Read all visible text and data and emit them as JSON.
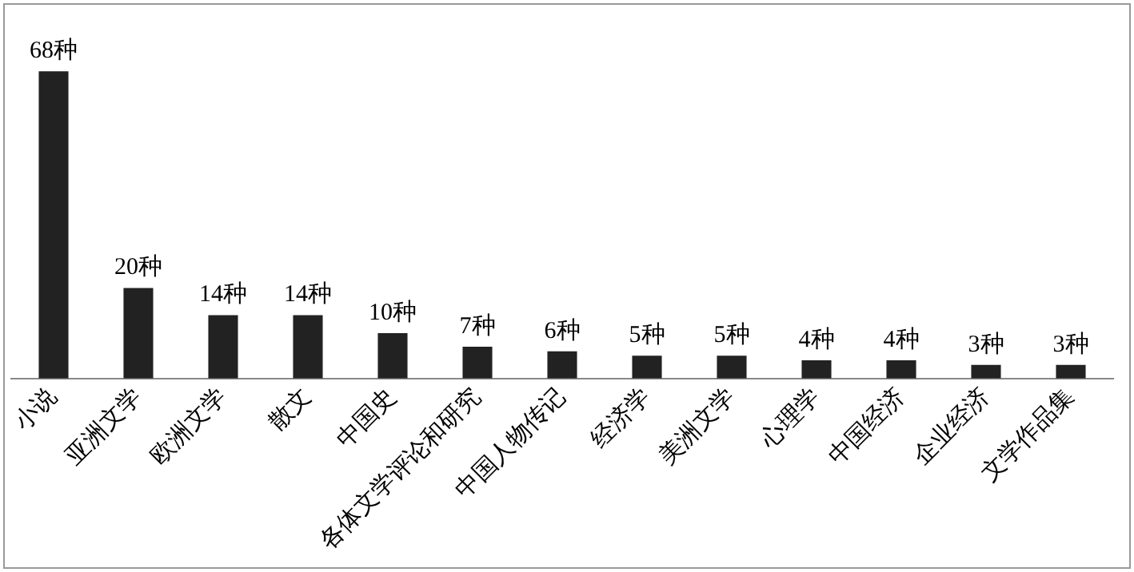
{
  "chart_data": {
    "type": "bar",
    "categories": [
      "小说",
      "亚洲文学",
      "欧洲文学",
      "散文",
      "中国史",
      "各体文学评论和研究",
      "中国人物传记",
      "经济学",
      "美洲文学",
      "心理学",
      "中国经济",
      "企业经济",
      "文学作品集"
    ],
    "values": [
      68,
      20,
      14,
      14,
      10,
      7,
      6,
      5,
      5,
      4,
      4,
      3,
      3
    ],
    "value_labels": [
      "68种",
      "20种",
      "14种",
      "14种",
      "10种",
      "7种",
      "6种",
      "5种",
      "5种",
      "4种",
      "4种",
      "3种",
      "3种"
    ],
    "color": "#222222",
    "grid": false,
    "legend": false
  }
}
